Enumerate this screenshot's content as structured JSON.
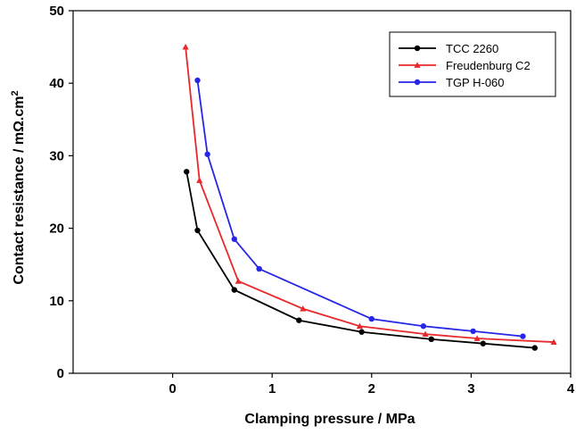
{
  "chart_data": {
    "type": "line",
    "xlabel": "Clamping pressure / MPa",
    "ylabel": "Contact resistance / mΩ.cm",
    "ylabel_superscript": "2",
    "xlim": [
      -1,
      4
    ],
    "ylim": [
      0,
      50
    ],
    "xticks": [
      0,
      1,
      2,
      3,
      4
    ],
    "yticks": [
      0,
      10,
      20,
      30,
      40,
      50
    ],
    "grid": false,
    "legend_position": "top-right",
    "series": [
      {
        "name": "TCC 2260",
        "color": "#000000",
        "marker": "circle",
        "x": [
          0.14,
          0.25,
          0.62,
          1.27,
          1.9,
          2.6,
          3.12,
          3.64
        ],
        "y": [
          27.8,
          19.7,
          11.5,
          7.3,
          5.7,
          4.7,
          4.1,
          3.5
        ]
      },
      {
        "name": "Freudenburg C2",
        "color": "#e8282a",
        "marker": "triangle",
        "x": [
          0.13,
          0.27,
          0.66,
          1.31,
          1.88,
          2.54,
          3.06,
          3.83
        ],
        "y": [
          45.0,
          26.6,
          12.7,
          8.9,
          6.5,
          5.4,
          4.8,
          4.3
        ]
      },
      {
        "name": "TGP H-060",
        "color": "#2626e6",
        "marker": "circle",
        "x": [
          0.25,
          0.35,
          0.62,
          0.87,
          2.0,
          2.52,
          3.02,
          3.52
        ],
        "y": [
          40.4,
          30.2,
          18.5,
          14.4,
          7.5,
          6.5,
          5.8,
          5.1
        ]
      }
    ]
  }
}
